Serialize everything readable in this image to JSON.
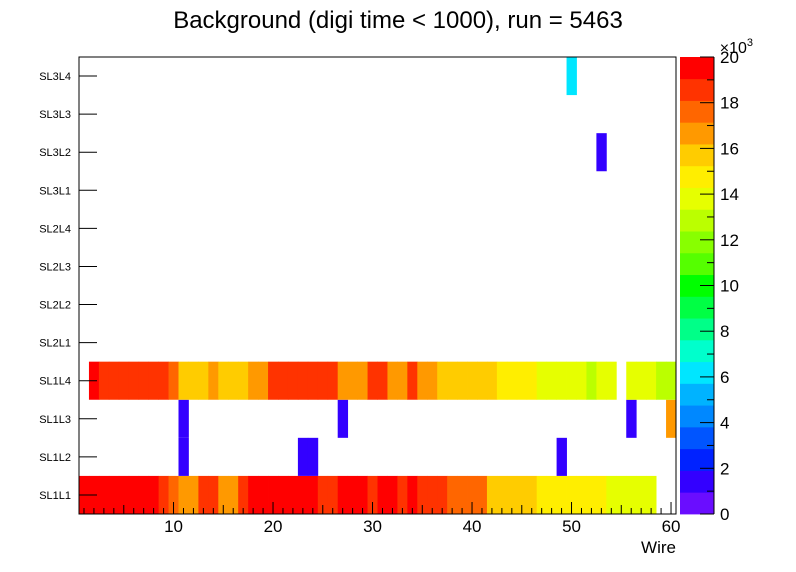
{
  "chart_data": {
    "type": "heatmap",
    "title": "Background (digi time < 1000), run = 5463",
    "xlabel": "Wire",
    "ylabel": "",
    "xlim": [
      0.5,
      60.5
    ],
    "x_ticks": [
      "10",
      "20",
      "30",
      "40",
      "50",
      "60"
    ],
    "y_categories": [
      "SL1L1",
      "SL1L2",
      "SL1L3",
      "SL1L4",
      "SL2L1",
      "SL2L2",
      "SL2L3",
      "SL2L4",
      "SL3L1",
      "SL3L2",
      "SL3L3",
      "SL3L4"
    ],
    "z_range": [
      0,
      20000
    ],
    "z_ticks": [
      "0",
      "2",
      "4",
      "6",
      "8",
      "10",
      "12",
      "14",
      "16",
      "18",
      "20"
    ],
    "z_multiplier": "×10",
    "z_exponent": "3",
    "z_palette": [
      "#6a0dff",
      "#3300ff",
      "#0022ff",
      "#0055ff",
      "#0088ff",
      "#00b3ff",
      "#00e6ff",
      "#00ffcc",
      "#00ff88",
      "#00ff44",
      "#00ff00",
      "#55ff00",
      "#88ff00",
      "#bbff00",
      "#e6ff00",
      "#ffee00",
      "#ffcc00",
      "#ff9900",
      "#ff6600",
      "#ff3300",
      "#ff0000"
    ],
    "series": [
      {
        "layer": "SL1L1",
        "cells": [
          [
            1,
            20500
          ],
          [
            2,
            19500
          ],
          [
            3,
            20500
          ],
          [
            4,
            20500
          ],
          [
            5,
            20500
          ],
          [
            6,
            20500
          ],
          [
            7,
            20500
          ],
          [
            8,
            19500
          ],
          [
            9,
            18500
          ],
          [
            10,
            17500
          ],
          [
            11,
            17000
          ],
          [
            12,
            17000
          ],
          [
            13,
            18500
          ],
          [
            14,
            18500
          ],
          [
            15,
            17000
          ],
          [
            16,
            17000
          ],
          [
            17,
            18500
          ],
          [
            18,
            19500
          ],
          [
            19,
            19500
          ],
          [
            20,
            19500
          ],
          [
            21,
            19500
          ],
          [
            22,
            20500
          ],
          [
            23,
            20500
          ],
          [
            24,
            20500
          ],
          [
            25,
            18500
          ],
          [
            26,
            18500
          ],
          [
            27,
            19500
          ],
          [
            28,
            19500
          ],
          [
            29,
            19500
          ],
          [
            30,
            18500
          ],
          [
            31,
            19500
          ],
          [
            32,
            19500
          ],
          [
            33,
            18500
          ],
          [
            34,
            19500
          ],
          [
            35,
            18500
          ],
          [
            36,
            18500
          ],
          [
            37,
            18500
          ],
          [
            38,
            17500
          ],
          [
            39,
            17500
          ],
          [
            40,
            17500
          ],
          [
            41,
            17500
          ],
          [
            42,
            16000
          ],
          [
            43,
            16000
          ],
          [
            44,
            16000
          ],
          [
            45,
            16000
          ],
          [
            46,
            16000
          ],
          [
            47,
            15000
          ],
          [
            48,
            15000
          ],
          [
            49,
            15000
          ],
          [
            50,
            15000
          ],
          [
            51,
            15000
          ],
          [
            52,
            15000
          ],
          [
            53,
            15000
          ],
          [
            54,
            14000
          ],
          [
            55,
            14000
          ],
          [
            56,
            14000
          ],
          [
            57,
            14000
          ],
          [
            58,
            14000
          ]
        ]
      },
      {
        "layer": "SL1L2",
        "cells": [
          [
            11,
            1500
          ],
          [
            23,
            1500
          ],
          [
            24,
            1500
          ],
          [
            49,
            1500
          ]
        ]
      },
      {
        "layer": "SL1L3",
        "cells": [
          [
            11,
            1500
          ],
          [
            27,
            1500
          ],
          [
            56,
            1500
          ],
          [
            60,
            17000
          ]
        ]
      },
      {
        "layer": "SL1L4",
        "cells": [
          [
            2,
            19500
          ],
          [
            3,
            18500
          ],
          [
            4,
            18500
          ],
          [
            5,
            18500
          ],
          [
            6,
            18500
          ],
          [
            7,
            18500
          ],
          [
            8,
            18500
          ],
          [
            9,
            18500
          ],
          [
            10,
            17500
          ],
          [
            11,
            16000
          ],
          [
            12,
            16000
          ],
          [
            13,
            16000
          ],
          [
            14,
            17000
          ],
          [
            15,
            16000
          ],
          [
            16,
            16000
          ],
          [
            17,
            16000
          ],
          [
            18,
            17000
          ],
          [
            19,
            17000
          ],
          [
            20,
            18500
          ],
          [
            21,
            18500
          ],
          [
            22,
            18500
          ],
          [
            23,
            18500
          ],
          [
            24,
            18500
          ],
          [
            25,
            18500
          ],
          [
            26,
            18500
          ],
          [
            27,
            17000
          ],
          [
            28,
            17000
          ],
          [
            29,
            17000
          ],
          [
            30,
            18500
          ],
          [
            31,
            18500
          ],
          [
            32,
            17000
          ],
          [
            33,
            17000
          ],
          [
            34,
            18500
          ],
          [
            35,
            17000
          ],
          [
            36,
            17000
          ],
          [
            37,
            16000
          ],
          [
            38,
            16000
          ],
          [
            39,
            16000
          ],
          [
            40,
            16000
          ],
          [
            41,
            16000
          ],
          [
            42,
            16000
          ],
          [
            43,
            15000
          ],
          [
            44,
            15000
          ],
          [
            45,
            15000
          ],
          [
            46,
            15000
          ],
          [
            47,
            13500
          ],
          [
            48,
            13500
          ],
          [
            49,
            13500
          ],
          [
            50,
            13500
          ],
          [
            51,
            13500
          ],
          [
            52,
            12500
          ],
          [
            53,
            13500
          ],
          [
            54,
            14000
          ],
          [
            56,
            13500
          ],
          [
            57,
            13500
          ],
          [
            58,
            13500
          ],
          [
            59,
            12500
          ],
          [
            60,
            12500
          ]
        ]
      },
      {
        "layer": "SL3L2",
        "cells": [
          [
            53,
            1500
          ]
        ]
      },
      {
        "layer": "SL3L4",
        "cells": [
          [
            50,
            6500
          ]
        ]
      }
    ]
  }
}
